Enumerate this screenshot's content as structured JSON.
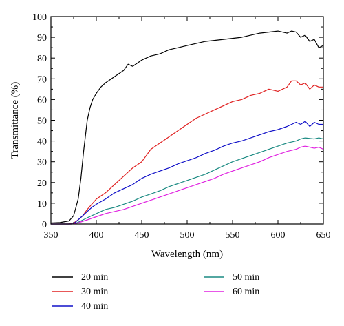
{
  "chart_data": {
    "type": "line",
    "xlabel": "Wavelength (nm)",
    "ylabel": "Transmittance (%)",
    "xlim": [
      350,
      650
    ],
    "ylim": [
      0,
      100
    ],
    "xticks": [
      350,
      400,
      450,
      500,
      550,
      600,
      650
    ],
    "yticks": [
      0,
      10,
      20,
      30,
      40,
      50,
      60,
      70,
      80,
      90,
      100
    ],
    "grid": false,
    "legend_position": "below",
    "series": [
      {
        "name": "20 min",
        "color": "#000000",
        "points": [
          [
            350,
            0.5
          ],
          [
            360,
            0.7
          ],
          [
            370,
            1.5
          ],
          [
            375,
            4
          ],
          [
            380,
            12
          ],
          [
            383,
            22
          ],
          [
            386,
            35
          ],
          [
            390,
            50
          ],
          [
            393,
            56
          ],
          [
            396,
            60
          ],
          [
            400,
            63
          ],
          [
            405,
            66
          ],
          [
            410,
            68
          ],
          [
            420,
            71
          ],
          [
            430,
            74
          ],
          [
            435,
            77
          ],
          [
            440,
            76
          ],
          [
            450,
            79
          ],
          [
            460,
            81
          ],
          [
            470,
            82
          ],
          [
            480,
            84
          ],
          [
            490,
            85
          ],
          [
            500,
            86
          ],
          [
            510,
            87
          ],
          [
            520,
            88
          ],
          [
            530,
            88.5
          ],
          [
            540,
            89
          ],
          [
            550,
            89.5
          ],
          [
            560,
            90
          ],
          [
            570,
            91
          ],
          [
            580,
            92
          ],
          [
            590,
            92.5
          ],
          [
            600,
            93
          ],
          [
            610,
            92
          ],
          [
            615,
            93
          ],
          [
            620,
            92.5
          ],
          [
            625,
            90
          ],
          [
            630,
            91
          ],
          [
            635,
            88
          ],
          [
            640,
            89
          ],
          [
            645,
            85
          ],
          [
            650,
            86
          ]
        ]
      },
      {
        "name": "30 min",
        "color": "#e02020",
        "points": [
          [
            350,
            0
          ],
          [
            370,
            0
          ],
          [
            375,
            0.5
          ],
          [
            380,
            2
          ],
          [
            385,
            4
          ],
          [
            390,
            7
          ],
          [
            395,
            9.5
          ],
          [
            400,
            12
          ],
          [
            410,
            15
          ],
          [
            420,
            19
          ],
          [
            430,
            23
          ],
          [
            440,
            27
          ],
          [
            450,
            30
          ],
          [
            455,
            33
          ],
          [
            460,
            36
          ],
          [
            470,
            39
          ],
          [
            480,
            42
          ],
          [
            490,
            45
          ],
          [
            500,
            48
          ],
          [
            510,
            51
          ],
          [
            520,
            53
          ],
          [
            530,
            55
          ],
          [
            540,
            57
          ],
          [
            550,
            59
          ],
          [
            560,
            60
          ],
          [
            570,
            62
          ],
          [
            580,
            63
          ],
          [
            590,
            65
          ],
          [
            600,
            64
          ],
          [
            610,
            66
          ],
          [
            615,
            69
          ],
          [
            620,
            69
          ],
          [
            625,
            67
          ],
          [
            630,
            68
          ],
          [
            635,
            65
          ],
          [
            640,
            67
          ],
          [
            645,
            66
          ],
          [
            650,
            66
          ]
        ]
      },
      {
        "name": "40 min",
        "color": "#1010c8",
        "points": [
          [
            350,
            0
          ],
          [
            372,
            0
          ],
          [
            376,
            0.5
          ],
          [
            380,
            2
          ],
          [
            385,
            4
          ],
          [
            390,
            6
          ],
          [
            395,
            8
          ],
          [
            400,
            9.5
          ],
          [
            410,
            12
          ],
          [
            420,
            15
          ],
          [
            430,
            17
          ],
          [
            440,
            19
          ],
          [
            450,
            22
          ],
          [
            460,
            24
          ],
          [
            470,
            25.5
          ],
          [
            480,
            27
          ],
          [
            490,
            29
          ],
          [
            500,
            30.5
          ],
          [
            510,
            32
          ],
          [
            520,
            34
          ],
          [
            530,
            35.5
          ],
          [
            540,
            37.5
          ],
          [
            550,
            39
          ],
          [
            560,
            40
          ],
          [
            570,
            41.5
          ],
          [
            580,
            43
          ],
          [
            590,
            44.5
          ],
          [
            600,
            45.5
          ],
          [
            610,
            47
          ],
          [
            615,
            48
          ],
          [
            620,
            49
          ],
          [
            625,
            48
          ],
          [
            630,
            49.5
          ],
          [
            635,
            47
          ],
          [
            640,
            49
          ],
          [
            645,
            48
          ],
          [
            650,
            48
          ]
        ]
      },
      {
        "name": "50 min",
        "color": "#1a8a82",
        "points": [
          [
            350,
            0
          ],
          [
            373,
            0
          ],
          [
            378,
            0.5
          ],
          [
            383,
            1.5
          ],
          [
            390,
            3
          ],
          [
            400,
            5
          ],
          [
            410,
            7
          ],
          [
            420,
            8
          ],
          [
            430,
            9.5
          ],
          [
            440,
            11
          ],
          [
            450,
            13
          ],
          [
            460,
            14.5
          ],
          [
            470,
            16
          ],
          [
            480,
            18
          ],
          [
            490,
            19.5
          ],
          [
            500,
            21
          ],
          [
            510,
            22.5
          ],
          [
            520,
            24
          ],
          [
            530,
            26
          ],
          [
            540,
            28
          ],
          [
            550,
            30
          ],
          [
            560,
            31.5
          ],
          [
            570,
            33
          ],
          [
            580,
            34.5
          ],
          [
            590,
            36
          ],
          [
            600,
            37.5
          ],
          [
            610,
            39
          ],
          [
            620,
            40
          ],
          [
            625,
            41
          ],
          [
            630,
            41.5
          ],
          [
            640,
            41
          ],
          [
            645,
            41.5
          ],
          [
            650,
            41
          ]
        ]
      },
      {
        "name": "60 min",
        "color": "#e020e0",
        "points": [
          [
            350,
            0
          ],
          [
            373,
            0
          ],
          [
            378,
            0.3
          ],
          [
            383,
            1
          ],
          [
            390,
            2
          ],
          [
            400,
            3.5
          ],
          [
            410,
            5
          ],
          [
            420,
            6
          ],
          [
            430,
            7
          ],
          [
            440,
            8.5
          ],
          [
            450,
            10
          ],
          [
            460,
            11.5
          ],
          [
            470,
            13
          ],
          [
            480,
            14.5
          ],
          [
            490,
            16
          ],
          [
            500,
            17.5
          ],
          [
            510,
            19
          ],
          [
            520,
            20.5
          ],
          [
            530,
            22
          ],
          [
            540,
            24
          ],
          [
            550,
            25.5
          ],
          [
            560,
            27
          ],
          [
            570,
            28.5
          ],
          [
            580,
            30
          ],
          [
            590,
            32
          ],
          [
            600,
            33.5
          ],
          [
            610,
            35
          ],
          [
            620,
            36
          ],
          [
            625,
            37
          ],
          [
            630,
            37.5
          ],
          [
            640,
            36.5
          ],
          [
            645,
            37
          ],
          [
            650,
            36
          ]
        ]
      }
    ]
  }
}
